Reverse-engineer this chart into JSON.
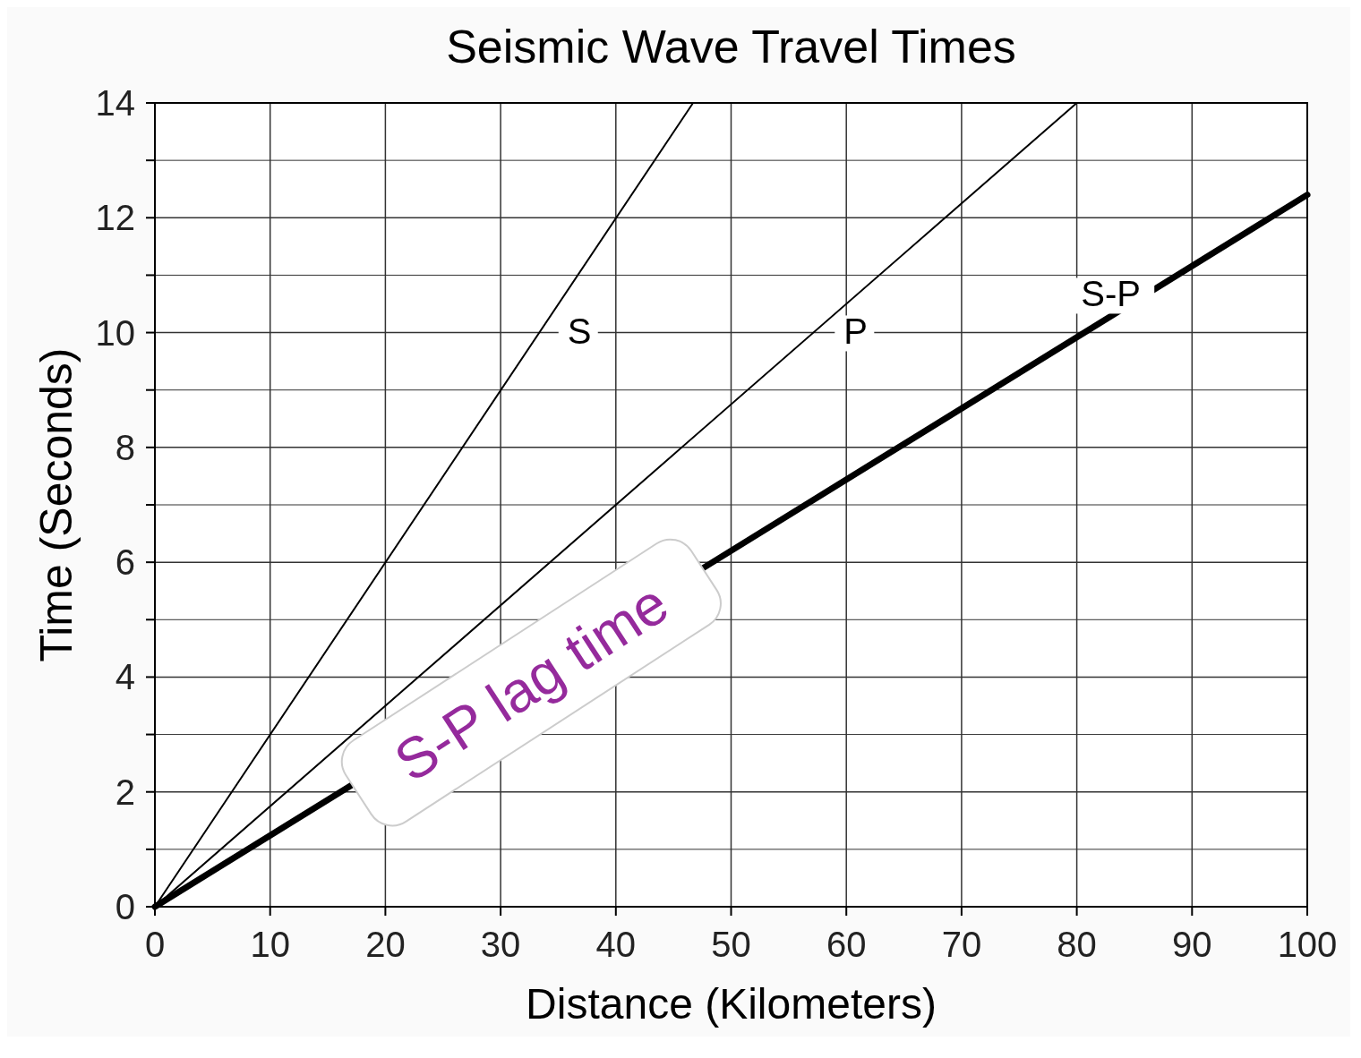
{
  "chart_data": {
    "type": "line",
    "title": "Seismic Wave Travel Times",
    "xlabel": "Distance (Kilometers)",
    "ylabel": "Time (Seconds)",
    "xlim": [
      0,
      100
    ],
    "ylim": [
      0,
      14
    ],
    "xticks": [
      0,
      10,
      20,
      30,
      40,
      50,
      60,
      70,
      80,
      90,
      100
    ],
    "yticks": [
      0,
      {
        "value": 1,
        "label": null
      },
      2,
      {
        "value": 3,
        "label": null
      },
      4,
      {
        "value": 5,
        "label": null
      },
      6,
      {
        "value": 7,
        "label": null
      },
      8,
      {
        "value": 9,
        "label": null
      },
      10,
      {
        "value": 11,
        "label": null
      },
      12,
      {
        "value": 13,
        "label": null
      },
      14
    ],
    "grid": true,
    "marker": "none",
    "line_style": "solid",
    "series": [
      {
        "name": "S",
        "color": "#000000",
        "x": [
          0,
          46.7
        ],
        "values": [
          0,
          14
        ]
      },
      {
        "name": "P",
        "color": "#000000",
        "x": [
          0,
          80
        ],
        "values": [
          0,
          14
        ]
      },
      {
        "name": "S-P",
        "color": "#000000",
        "x": [
          0,
          100
        ],
        "values": [
          0,
          12.4
        ]
      }
    ],
    "annotations": [
      "S-P lag time"
    ]
  }
}
